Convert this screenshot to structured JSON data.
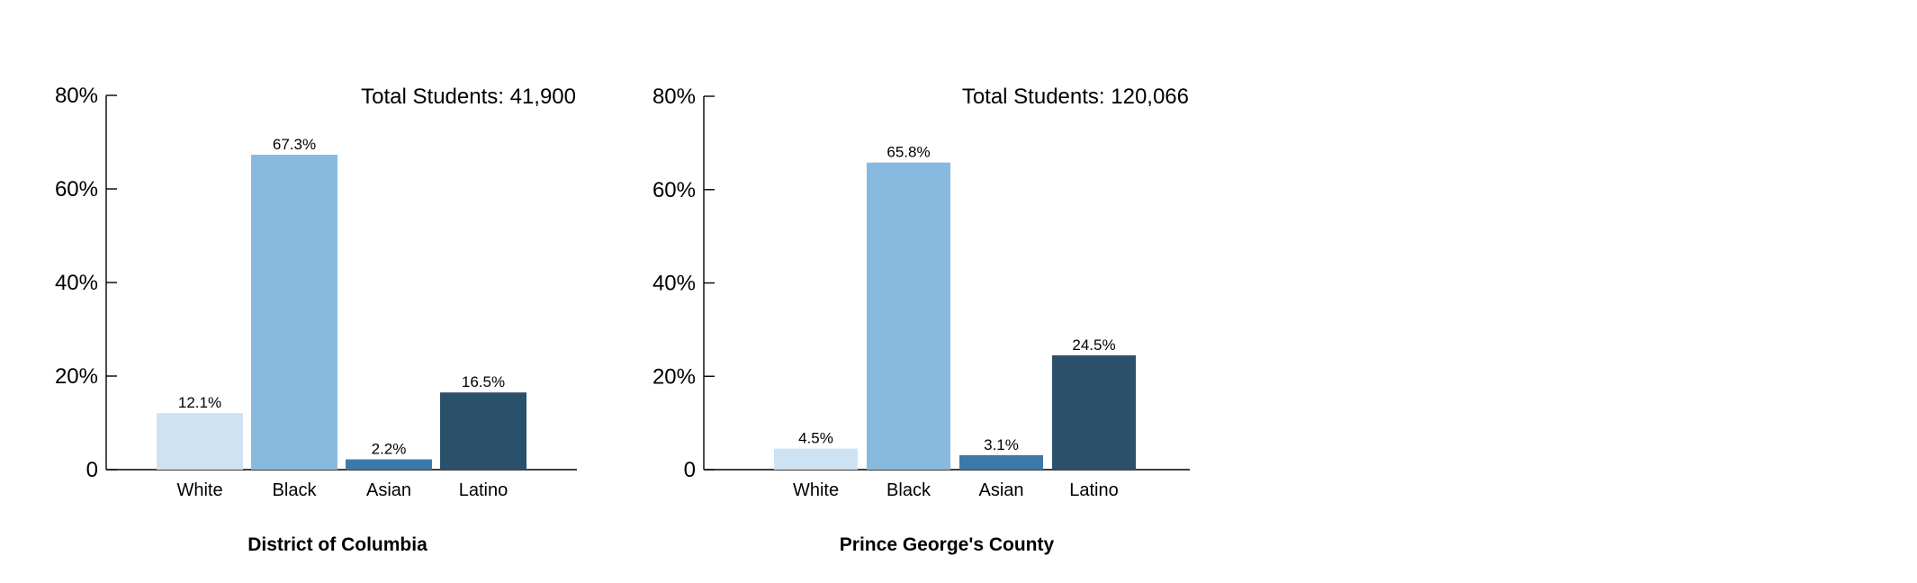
{
  "chart_data": [
    {
      "type": "bar",
      "title": "District of Columbia",
      "annotation": "Total Students: 41,900",
      "categories": [
        "White",
        "Black",
        "Asian",
        "Latino"
      ],
      "values": [
        12.1,
        67.3,
        2.2,
        16.5
      ],
      "value_labels": [
        "12.1%",
        "67.3%",
        "2.2%",
        "16.5%"
      ],
      "ylim": [
        0,
        80
      ],
      "yticks": [
        0,
        20,
        40,
        60,
        80
      ],
      "ytick_labels": [
        "0",
        "20%",
        "40%",
        "60%",
        "80%"
      ],
      "colors": [
        "#cde3f3",
        "#88badf",
        "#3d79a8",
        "#2b506a"
      ],
      "grid": false,
      "legend": "none"
    },
    {
      "type": "bar",
      "title": "Prince George's County",
      "annotation": "Total Students: 120,066",
      "categories": [
        "White",
        "Black",
        "Asian",
        "Latino"
      ],
      "values": [
        4.5,
        65.8,
        3.1,
        24.5
      ],
      "value_labels": [
        "4.5%",
        "65.8%",
        "3.1%",
        "24.5%"
      ],
      "ylim": [
        0,
        80
      ],
      "yticks": [
        0,
        20,
        40,
        60,
        80
      ],
      "ytick_labels": [
        "0",
        "20%",
        "40%",
        "60%",
        "80%"
      ],
      "colors": [
        "#cde3f3",
        "#88badf",
        "#3d79a8",
        "#2b506a"
      ],
      "grid": false,
      "legend": "none"
    }
  ]
}
